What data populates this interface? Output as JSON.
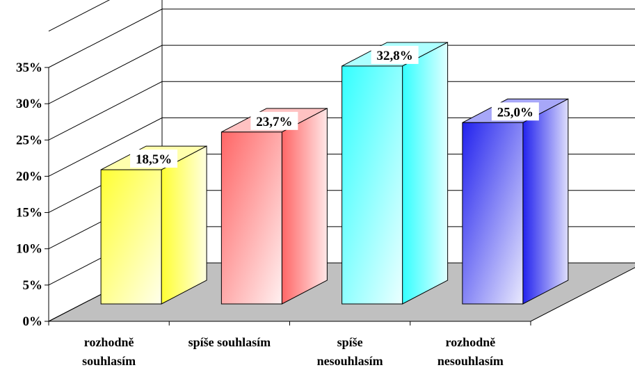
{
  "chart_data": {
    "type": "bar",
    "categories": [
      [
        "rozhodně",
        "souhlasím"
      ],
      [
        "spíše souhlasím"
      ],
      [
        "spíše",
        "nesouhlasím"
      ],
      [
        "rozhodně",
        "nesouhlasím"
      ]
    ],
    "values": [
      18.5,
      23.7,
      32.8,
      25.0
    ],
    "data_labels": [
      "18,5%",
      "23,7%",
      "32,8%",
      "25,0%"
    ],
    "yticks": [
      0,
      5,
      10,
      15,
      20,
      25,
      30,
      35
    ],
    "ytick_labels": [
      "0%",
      "5%",
      "10%",
      "15%",
      "20%",
      "25%",
      "30%",
      "35%"
    ],
    "ylim": [
      0,
      35
    ],
    "grid": true,
    "three_d": true,
    "colors": [
      "#ffff33",
      "#ff6666",
      "#33ffff",
      "#2222ee"
    ],
    "floor_color": "#c0c0c0"
  }
}
